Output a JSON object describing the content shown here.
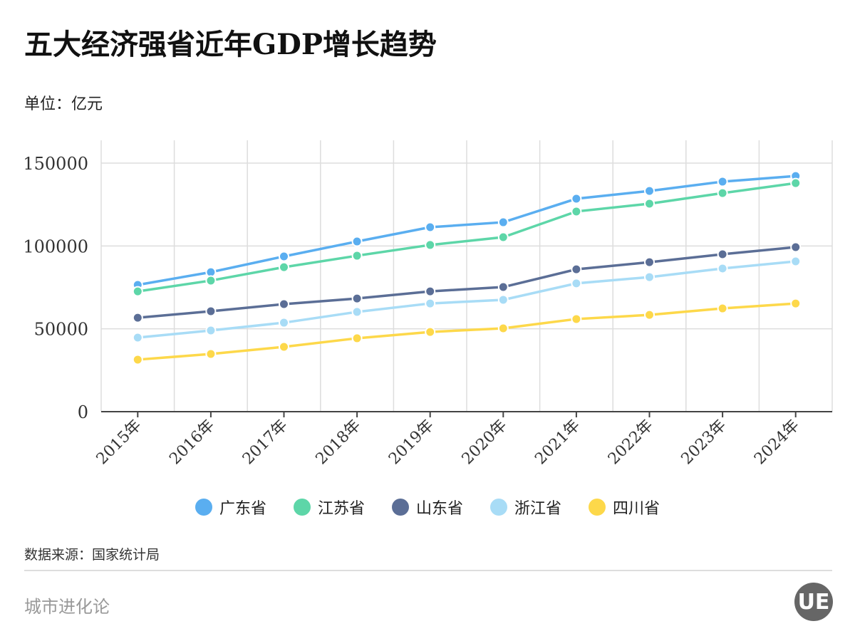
{
  "header": {
    "title": "五大经济强省近年GDP增长趋势",
    "unit": "单位：亿元"
  },
  "footer": {
    "source": "数据来源：国家统计局",
    "brand": "城市进化论",
    "logo_text": "UE"
  },
  "chart_data": {
    "type": "line",
    "title": "五大经济强省近年GDP增长趋势",
    "ylabel": "单位：亿元",
    "categories": [
      "2015年",
      "2016年",
      "2017年",
      "2018年",
      "2019年",
      "2020年",
      "2021年",
      "2022年",
      "2023年",
      "2024年"
    ],
    "ylim": [
      0,
      150000
    ],
    "yticks": [
      0,
      50000,
      100000,
      150000
    ],
    "grid": true,
    "legend": "bottom",
    "series": [
      {
        "name": "广东省",
        "color": "#5aaef0",
        "values": [
          76500,
          84200,
          93700,
          102700,
          111300,
          114300,
          128500,
          133200,
          138800,
          142200
        ]
      },
      {
        "name": "江苏省",
        "color": "#5dd6a8",
        "values": [
          72600,
          79100,
          87200,
          94100,
          100600,
          105300,
          120800,
          125500,
          131900,
          137900
        ]
      },
      {
        "name": "山东省",
        "color": "#5b6e96",
        "values": [
          56700,
          60600,
          64900,
          68300,
          72600,
          75200,
          85900,
          90200,
          95000,
          99300
        ]
      },
      {
        "name": "浙江省",
        "color": "#a8dcf6",
        "values": [
          44700,
          49000,
          53700,
          60200,
          65300,
          67500,
          77400,
          81200,
          86400,
          90700
        ]
      },
      {
        "name": "四川省",
        "color": "#fdd84a",
        "values": [
          31400,
          34800,
          39100,
          44300,
          48100,
          50300,
          55900,
          58400,
          62300,
          65300
        ]
      }
    ]
  }
}
